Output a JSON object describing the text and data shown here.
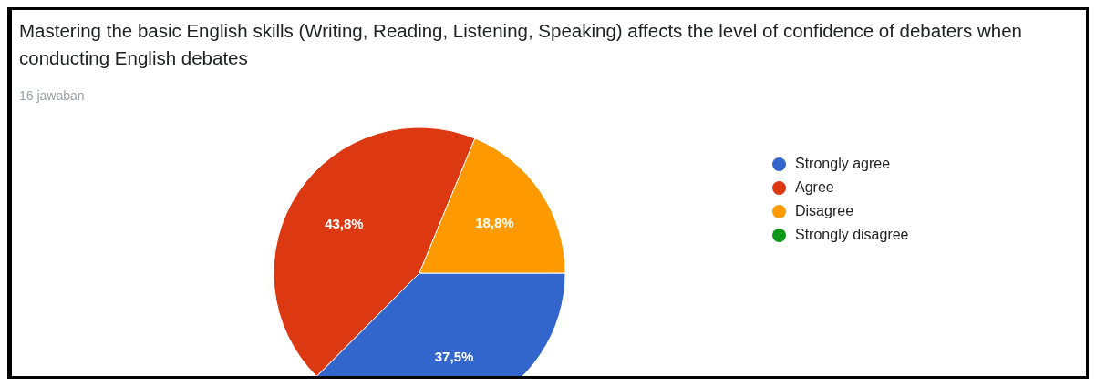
{
  "chart_data": {
    "type": "pie",
    "title": "Mastering the basic English skills (Writing, Reading, Listening, Speaking) affects the level of confidence of debaters when conducting English debates",
    "subtitle": "16 jawaban",
    "categories": [
      "Strongly agree",
      "Agree",
      "Disagree",
      "Strongly disagree"
    ],
    "values": [
      37.5,
      43.8,
      18.8,
      0
    ],
    "value_labels": [
      "37,5%",
      "43,8%",
      "18,8%",
      null
    ],
    "colors": [
      "#3366cc",
      "#dc3912",
      "#ff9900",
      "#109618"
    ],
    "legend": "right"
  }
}
